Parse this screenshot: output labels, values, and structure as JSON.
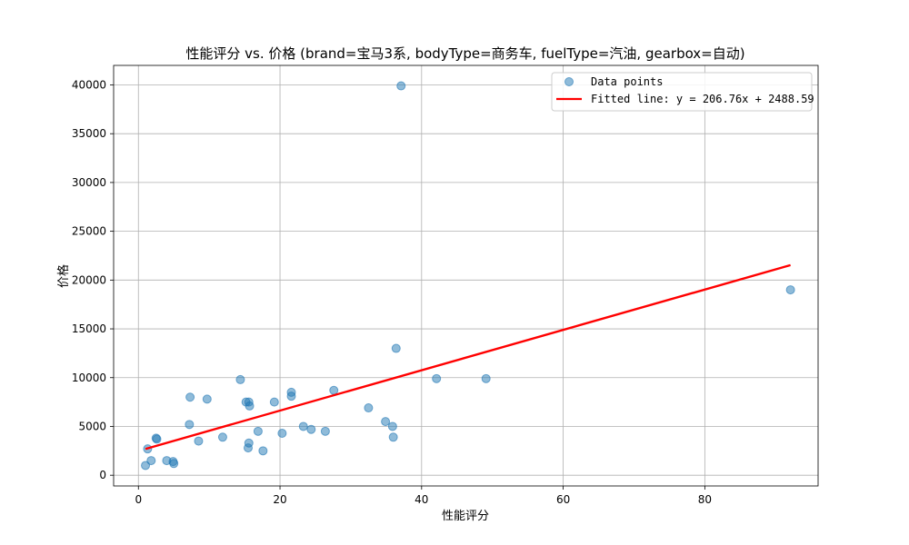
{
  "chart_data": {
    "type": "scatter",
    "title": "性能评分 vs. 价格 (brand=宝马3系, bodyType=商务车, fuelType=汽油, gearbox=自动)",
    "xlabel": "性能评分",
    "ylabel": "价格",
    "xlim": [
      -3.5,
      96
    ],
    "ylim": [
      -1100,
      42000
    ],
    "xticks": [
      0,
      20,
      40,
      60,
      80
    ],
    "yticks": [
      0,
      5000,
      10000,
      15000,
      20000,
      25000,
      30000,
      35000,
      40000
    ],
    "xtick_labels": [
      "0",
      "20",
      "40",
      "60",
      "80"
    ],
    "ytick_labels": [
      "0",
      "5000",
      "10000",
      "15000",
      "20000",
      "25000",
      "30000",
      "35000",
      "40000"
    ],
    "grid": true,
    "legend_position": "top-right",
    "series": [
      {
        "name": "Data points",
        "kind": "scatter",
        "color": "#1f77b4",
        "points": [
          [
            1.0,
            1000
          ],
          [
            1.3,
            2700
          ],
          [
            1.8,
            1500
          ],
          [
            2.5,
            3800
          ],
          [
            2.6,
            3700
          ],
          [
            4.0,
            1500
          ],
          [
            4.9,
            1400
          ],
          [
            5.0,
            1200
          ],
          [
            7.2,
            5200
          ],
          [
            7.3,
            8000
          ],
          [
            8.5,
            3500
          ],
          [
            9.7,
            7800
          ],
          [
            11.9,
            3900
          ],
          [
            14.4,
            9800
          ],
          [
            15.2,
            7500
          ],
          [
            15.5,
            2800
          ],
          [
            15.6,
            3300
          ],
          [
            15.6,
            7500
          ],
          [
            15.7,
            7100
          ],
          [
            16.9,
            4500
          ],
          [
            17.6,
            2500
          ],
          [
            19.2,
            7500
          ],
          [
            20.3,
            4300
          ],
          [
            21.6,
            8500
          ],
          [
            21.6,
            8100
          ],
          [
            23.3,
            5000
          ],
          [
            24.4,
            4700
          ],
          [
            26.4,
            4500
          ],
          [
            27.6,
            8700
          ],
          [
            32.5,
            6900
          ],
          [
            34.9,
            5500
          ],
          [
            35.9,
            5000
          ],
          [
            36.0,
            3900
          ],
          [
            36.4,
            13000
          ],
          [
            37.1,
            39900
          ],
          [
            42.1,
            9900
          ],
          [
            49.1,
            9900
          ],
          [
            92.1,
            19000
          ]
        ]
      },
      {
        "name": "Fitted line: y = 206.76x + 2488.59",
        "kind": "line",
        "color": "#ff0000",
        "slope": 206.76,
        "intercept": 2488.59,
        "x_range": [
          1.0,
          92.1
        ]
      }
    ]
  }
}
